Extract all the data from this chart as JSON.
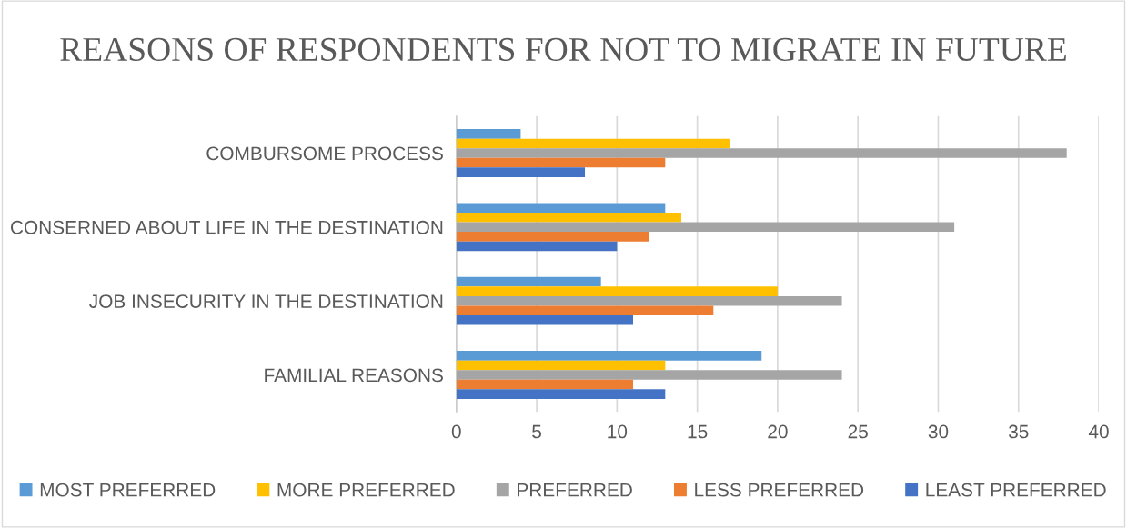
{
  "chart_data": {
    "type": "bar",
    "orientation": "horizontal",
    "title": "REASONS OF RESPONDENTS FOR NOT TO MIGRATE IN FUTURE",
    "categories": [
      "COMBURSOME PROCESS",
      "CONSERNED ABOUT LIFE IN THE DESTINATION",
      "JOB INSECURITY IN THE DESTINATION",
      "FAMILIAL REASONS"
    ],
    "series": [
      {
        "name": "MOST PREFERRED",
        "color": "#5b9bd5",
        "values": [
          4,
          13,
          9,
          19
        ]
      },
      {
        "name": "MORE PREFERRED",
        "color": "#ffc000",
        "values": [
          17,
          14,
          20,
          13
        ]
      },
      {
        "name": "PREFERRED",
        "color": "#a5a5a5",
        "values": [
          38,
          31,
          24,
          24
        ]
      },
      {
        "name": "LESS PREFERRED",
        "color": "#ed7d31",
        "values": [
          13,
          12,
          16,
          11
        ]
      },
      {
        "name": "LEAST PREFERRED",
        "color": "#4472c4",
        "values": [
          8,
          10,
          11,
          13
        ]
      }
    ],
    "xlim": [
      0,
      40
    ],
    "xticks": [
      0,
      5,
      10,
      15,
      20,
      25,
      30,
      35,
      40
    ],
    "grid": "x",
    "legend": "bottom"
  }
}
